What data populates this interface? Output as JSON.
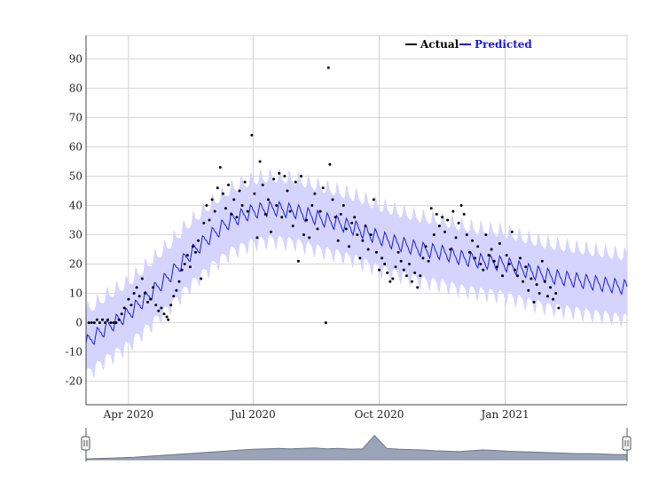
{
  "chart_data": {
    "type": "line",
    "title": "",
    "xlabel": "",
    "ylabel": "",
    "x_range": [
      "2020-03-01",
      "2021-03-31"
    ],
    "ylim": [
      -28,
      98
    ],
    "y_ticks": [
      -20,
      -10,
      0,
      10,
      20,
      30,
      40,
      50,
      60,
      70,
      80,
      90
    ],
    "x_ticks": [
      {
        "date": "2020-04-01",
        "label": "Apr 2020"
      },
      {
        "date": "2020-07-01",
        "label": "Jul 2020"
      },
      {
        "date": "2020-10-01",
        "label": "Oct 2020"
      },
      {
        "date": "2021-01-01",
        "label": "Jan 2021"
      }
    ],
    "grid": true,
    "legend_position": "top-right",
    "series": [
      {
        "name": "Actual",
        "kind": "scatter",
        "color": "#000000",
        "points": [
          [
            "2020-03-03",
            0
          ],
          [
            "2020-03-05",
            0
          ],
          [
            "2020-03-07",
            0
          ],
          [
            "2020-03-09",
            1
          ],
          [
            "2020-03-11",
            0
          ],
          [
            "2020-03-13",
            1
          ],
          [
            "2020-03-15",
            0
          ],
          [
            "2020-03-17",
            1
          ],
          [
            "2020-03-19",
            0
          ],
          [
            "2020-03-21",
            0
          ],
          [
            "2020-03-23",
            0
          ],
          [
            "2020-03-25",
            1
          ],
          [
            "2020-03-27",
            3
          ],
          [
            "2020-03-29",
            5
          ],
          [
            "2020-04-01",
            8
          ],
          [
            "2020-04-03",
            6
          ],
          [
            "2020-04-05",
            10
          ],
          [
            "2020-04-07",
            12
          ],
          [
            "2020-04-09",
            9
          ],
          [
            "2020-04-11",
            15
          ],
          [
            "2020-04-13",
            10
          ],
          [
            "2020-04-15",
            7
          ],
          [
            "2020-04-17",
            8
          ],
          [
            "2020-04-19",
            12
          ],
          [
            "2020-04-21",
            6
          ],
          [
            "2020-04-23",
            4
          ],
          [
            "2020-04-25",
            5
          ],
          [
            "2020-04-27",
            3
          ],
          [
            "2020-04-29",
            2
          ],
          [
            "2020-04-30",
            1
          ],
          [
            "2020-05-02",
            6
          ],
          [
            "2020-05-04",
            9
          ],
          [
            "2020-05-06",
            11
          ],
          [
            "2020-05-08",
            14
          ],
          [
            "2020-05-10",
            18
          ],
          [
            "2020-05-12",
            20
          ],
          [
            "2020-05-14",
            23
          ],
          [
            "2020-05-16",
            19
          ],
          [
            "2020-05-18",
            26
          ],
          [
            "2020-05-20",
            24
          ],
          [
            "2020-05-22",
            28
          ],
          [
            "2020-05-24",
            15
          ],
          [
            "2020-05-26",
            34
          ],
          [
            "2020-05-28",
            40
          ],
          [
            "2020-05-30",
            35
          ],
          [
            "2020-06-01",
            42
          ],
          [
            "2020-06-03",
            38
          ],
          [
            "2020-06-05",
            46
          ],
          [
            "2020-06-07",
            53
          ],
          [
            "2020-06-09",
            44
          ],
          [
            "2020-06-11",
            39
          ],
          [
            "2020-06-13",
            47
          ],
          [
            "2020-06-15",
            37
          ],
          [
            "2020-06-17",
            42
          ],
          [
            "2020-06-19",
            36
          ],
          [
            "2020-06-21",
            45
          ],
          [
            "2020-06-23",
            40
          ],
          [
            "2020-06-25",
            48
          ],
          [
            "2020-06-27",
            38
          ],
          [
            "2020-06-30",
            64
          ],
          [
            "2020-07-02",
            44
          ],
          [
            "2020-07-04",
            29
          ],
          [
            "2020-07-06",
            55
          ],
          [
            "2020-07-08",
            47
          ],
          [
            "2020-07-10",
            37
          ],
          [
            "2020-07-12",
            42
          ],
          [
            "2020-07-14",
            31
          ],
          [
            "2020-07-16",
            49
          ],
          [
            "2020-07-18",
            40
          ],
          [
            "2020-07-20",
            51
          ],
          [
            "2020-07-22",
            36
          ],
          [
            "2020-07-24",
            50
          ],
          [
            "2020-07-26",
            45
          ],
          [
            "2020-07-28",
            38
          ],
          [
            "2020-07-30",
            33
          ],
          [
            "2020-08-01",
            48
          ],
          [
            "2020-08-03",
            21
          ],
          [
            "2020-08-05",
            50
          ],
          [
            "2020-08-07",
            30
          ],
          [
            "2020-08-09",
            35
          ],
          [
            "2020-08-11",
            29
          ],
          [
            "2020-08-13",
            40
          ],
          [
            "2020-08-15",
            44
          ],
          [
            "2020-08-17",
            32
          ],
          [
            "2020-08-19",
            38
          ],
          [
            "2020-08-21",
            46
          ],
          [
            "2020-08-23",
            0
          ],
          [
            "2020-08-25",
            87
          ],
          [
            "2020-08-26",
            54
          ],
          [
            "2020-08-28",
            42
          ],
          [
            "2020-08-30",
            36
          ],
          [
            "2020-09-01",
            28
          ],
          [
            "2020-09-03",
            37
          ],
          [
            "2020-09-05",
            40
          ],
          [
            "2020-09-07",
            32
          ],
          [
            "2020-09-09",
            26
          ],
          [
            "2020-09-11",
            34
          ],
          [
            "2020-09-13",
            36
          ],
          [
            "2020-09-15",
            30
          ],
          [
            "2020-09-17",
            22
          ],
          [
            "2020-09-19",
            28
          ],
          [
            "2020-09-21",
            33
          ],
          [
            "2020-09-23",
            25
          ],
          [
            "2020-09-25",
            30
          ],
          [
            "2020-09-27",
            42
          ],
          [
            "2020-09-29",
            24
          ],
          [
            "2020-10-01",
            18
          ],
          [
            "2020-10-03",
            22
          ],
          [
            "2020-10-05",
            20
          ],
          [
            "2020-10-07",
            17
          ],
          [
            "2020-10-09",
            14
          ],
          [
            "2020-10-11",
            15
          ],
          [
            "2020-10-13",
            19
          ],
          [
            "2020-10-15",
            24
          ],
          [
            "2020-10-17",
            21
          ],
          [
            "2020-10-19",
            18
          ],
          [
            "2020-10-21",
            16
          ],
          [
            "2020-10-23",
            20
          ],
          [
            "2020-10-25",
            14
          ],
          [
            "2020-10-27",
            17
          ],
          [
            "2020-10-29",
            12
          ],
          [
            "2020-10-31",
            16
          ],
          [
            "2020-11-02",
            22
          ],
          [
            "2020-11-04",
            26
          ],
          [
            "2020-11-06",
            21
          ],
          [
            "2020-11-08",
            39
          ],
          [
            "2020-11-10",
            30
          ],
          [
            "2020-11-12",
            37
          ],
          [
            "2020-11-14",
            33
          ],
          [
            "2020-11-16",
            36
          ],
          [
            "2020-11-18",
            31
          ],
          [
            "2020-11-20",
            35
          ],
          [
            "2020-11-22",
            25
          ],
          [
            "2020-11-24",
            38
          ],
          [
            "2020-11-26",
            29
          ],
          [
            "2020-11-28",
            34
          ],
          [
            "2020-11-30",
            40
          ],
          [
            "2020-12-02",
            37
          ],
          [
            "2020-12-04",
            30
          ],
          [
            "2020-12-06",
            24
          ],
          [
            "2020-12-08",
            28
          ],
          [
            "2020-12-10",
            22
          ],
          [
            "2020-12-12",
            26
          ],
          [
            "2020-12-14",
            20
          ],
          [
            "2020-12-16",
            18
          ],
          [
            "2020-12-18",
            30
          ],
          [
            "2020-12-20",
            23
          ],
          [
            "2020-12-22",
            25
          ],
          [
            "2020-12-24",
            21
          ],
          [
            "2020-12-26",
            19
          ],
          [
            "2020-12-28",
            27
          ],
          [
            "2020-12-30",
            16
          ],
          [
            "2021-01-02",
            23
          ],
          [
            "2021-01-04",
            20
          ],
          [
            "2021-01-06",
            31
          ],
          [
            "2021-01-08",
            18
          ],
          [
            "2021-01-10",
            16
          ],
          [
            "2021-01-12",
            22
          ],
          [
            "2021-01-14",
            14
          ],
          [
            "2021-01-16",
            19
          ],
          [
            "2021-01-18",
            11
          ],
          [
            "2021-01-20",
            15
          ],
          [
            "2021-01-22",
            7
          ],
          [
            "2021-01-24",
            13
          ],
          [
            "2021-01-26",
            10
          ],
          [
            "2021-01-28",
            21
          ],
          [
            "2021-01-30",
            14
          ],
          [
            "2021-02-01",
            9
          ],
          [
            "2021-02-03",
            12
          ],
          [
            "2021-02-05",
            8
          ],
          [
            "2021-02-07",
            10
          ],
          [
            "2021-02-09",
            5
          ]
        ]
      },
      {
        "name": "Predicted",
        "kind": "line",
        "color": "#1a1adb",
        "band_color": "#d4d4ff",
        "band_half_width": 10,
        "points": [
          [
            "2020-03-01",
            -7
          ],
          [
            "2020-03-15",
            -2
          ],
          [
            "2020-04-01",
            3
          ],
          [
            "2020-04-15",
            9
          ],
          [
            "2020-05-01",
            16
          ],
          [
            "2020-05-15",
            23
          ],
          [
            "2020-06-01",
            30
          ],
          [
            "2020-06-15",
            35
          ],
          [
            "2020-07-01",
            38
          ],
          [
            "2020-07-15",
            39
          ],
          [
            "2020-08-01",
            38
          ],
          [
            "2020-08-15",
            36
          ],
          [
            "2020-09-01",
            34
          ],
          [
            "2020-09-15",
            32
          ],
          [
            "2020-10-01",
            29
          ],
          [
            "2020-10-15",
            27
          ],
          [
            "2020-11-01",
            25
          ],
          [
            "2020-11-15",
            24
          ],
          [
            "2020-12-01",
            22
          ],
          [
            "2020-12-15",
            21
          ],
          [
            "2021-01-01",
            20
          ],
          [
            "2021-01-15",
            18
          ],
          [
            "2021-02-01",
            16
          ],
          [
            "2021-02-15",
            15
          ],
          [
            "2021-03-01",
            14
          ],
          [
            "2021-03-15",
            13
          ],
          [
            "2021-03-31",
            12
          ]
        ]
      }
    ]
  },
  "range_selector": {
    "overview_values": [
      2,
      3,
      4,
      5,
      6,
      8,
      10,
      12,
      14,
      16,
      18,
      20,
      22,
      24,
      26,
      27,
      28,
      27,
      28,
      29,
      27,
      28,
      26,
      27,
      60,
      28,
      26,
      25,
      24,
      22,
      21,
      20,
      22,
      24,
      23,
      21,
      20,
      19,
      18,
      17,
      16,
      15,
      15,
      14,
      13,
      13
    ]
  }
}
